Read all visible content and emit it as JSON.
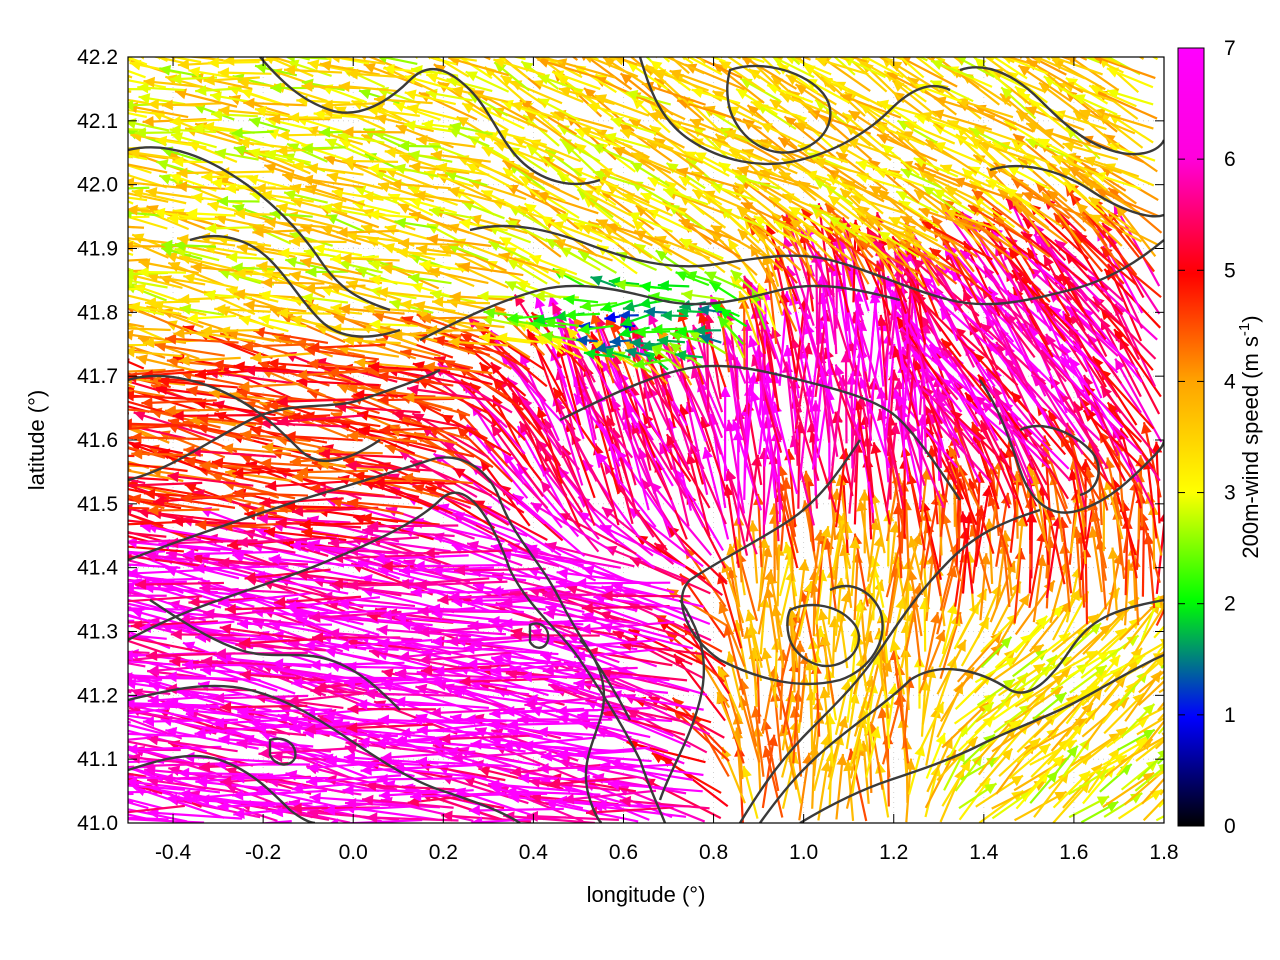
{
  "chart_data": {
    "type": "vector-field",
    "xlabel": "longitude (°)",
    "ylabel": "latitude (°)",
    "xlim": [
      -0.5,
      1.8
    ],
    "ylim": [
      41.0,
      42.2
    ],
    "xticks": [
      -0.4,
      -0.2,
      0.0,
      0.2,
      0.4,
      0.6,
      0.8,
      1.0,
      1.2,
      1.4,
      1.6,
      1.8
    ],
    "xtick_labels": [
      "-0.4",
      "-0.2",
      "0.0",
      "0.2",
      "0.4",
      "0.6",
      "0.8",
      "1.0",
      "1.2",
      "1.4",
      "1.6",
      "1.8"
    ],
    "yticks": [
      41.0,
      41.1,
      41.2,
      41.3,
      41.4,
      41.5,
      41.6,
      41.7,
      41.8,
      41.9,
      42.0,
      42.1,
      42.2
    ],
    "ytick_labels": [
      "41.0",
      "41.1",
      "41.2",
      "41.3",
      "41.4",
      "41.5",
      "41.6",
      "41.7",
      "41.8",
      "41.9",
      "42.0",
      "42.1",
      "42.2"
    ],
    "grid": true,
    "colorbar": {
      "label_main": "200m-wind speed (m s",
      "label_sup": "-1",
      "label_end": ")",
      "range": [
        0,
        7
      ],
      "ticks": [
        0,
        1,
        2,
        3,
        4,
        5,
        6,
        7
      ],
      "tick_labels": [
        "0",
        "1",
        "2",
        "3",
        "4",
        "5",
        "6",
        "7"
      ],
      "colors": [
        "#000000",
        "#0000ff",
        "#00ff00",
        "#ffff00",
        "#ffa500",
        "#ff0000",
        "#ff00ff"
      ]
    },
    "wind_regimes": [
      {
        "lon": [
          -0.5,
          0.6
        ],
        "lat": [
          41.0,
          41.45
        ],
        "u": -6.5,
        "v": 0.9,
        "speed": 7.0
      },
      {
        "lon": [
          -0.5,
          0.4
        ],
        "lat": [
          41.45,
          41.75
        ],
        "u": -5.0,
        "v": 0.8,
        "speed": 5.5
      },
      {
        "lon": [
          0.3,
          0.8
        ],
        "lat": [
          41.45,
          41.7
        ],
        "u": -2.0,
        "v": 4.5,
        "speed": 6.5
      },
      {
        "lon": [
          0.8,
          1.3
        ],
        "lat": [
          41.45,
          41.85
        ],
        "u": -0.5,
        "v": 5.5,
        "speed": 6.8
      },
      {
        "lon": [
          1.3,
          1.8
        ],
        "lat": [
          41.5,
          41.9
        ],
        "u": -3.0,
        "v": 4.0,
        "speed": 6.5
      },
      {
        "lon": [
          0.9,
          1.3
        ],
        "lat": [
          41.0,
          41.45
        ],
        "u": 0.1,
        "v": 3.8,
        "speed": 4.5
      },
      {
        "lon": [
          1.3,
          1.8
        ],
        "lat": [
          41.0,
          41.3
        ],
        "u": 3.0,
        "v": 2.6,
        "speed": 3.8
      },
      {
        "lon": [
          1.3,
          1.8
        ],
        "lat": [
          41.3,
          41.5
        ],
        "u": -0.3,
        "v": 4.5,
        "speed": 5.2
      },
      {
        "lon": [
          -0.5,
          0.3
        ],
        "lat": [
          41.75,
          42.2
        ],
        "u": -3.2,
        "v": 0.6,
        "speed": 3.8
      },
      {
        "lon": [
          0.3,
          1.8
        ],
        "lat": [
          41.85,
          42.2
        ],
        "u": -2.8,
        "v": 1.6,
        "speed": 4.0
      },
      {
        "lon": [
          0.5,
          1.0
        ],
        "lat": [
          41.7,
          41.85
        ],
        "u": -1.5,
        "v": -0.3,
        "speed": 1.8
      }
    ]
  }
}
